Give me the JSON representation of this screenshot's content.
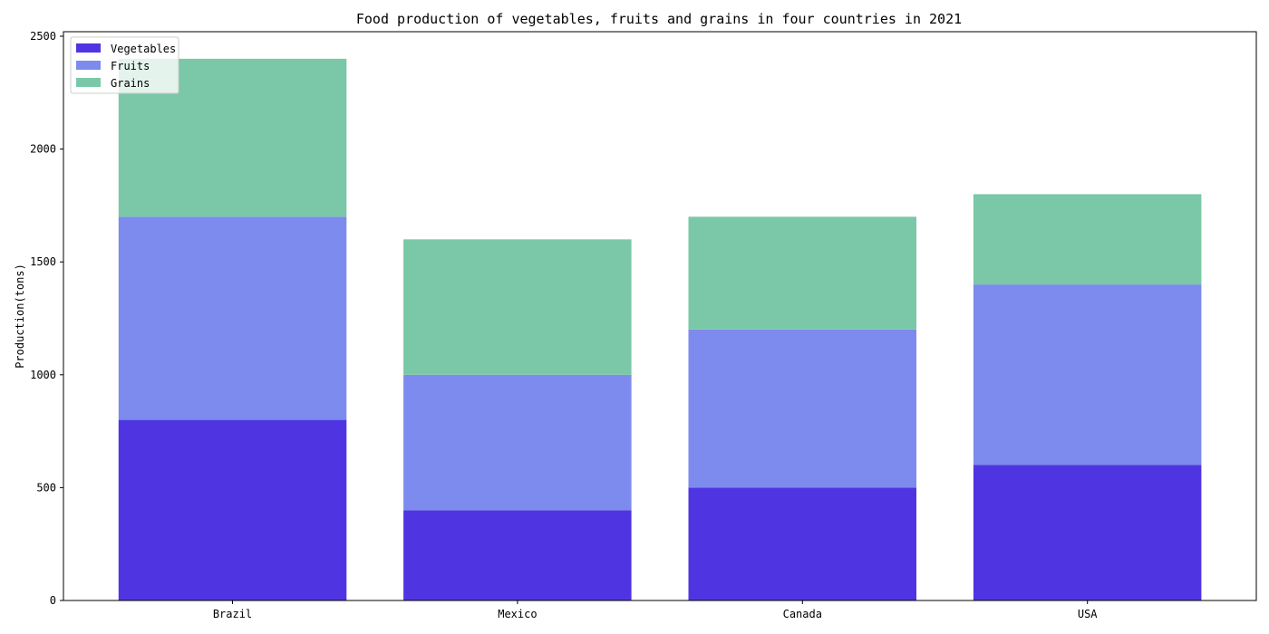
{
  "chart_data": {
    "type": "bar",
    "stacked": true,
    "title": "Food production of vegetables, fruits and grains in four countries in 2021",
    "xlabel": "",
    "ylabel": "Production(tons)",
    "categories": [
      "Brazil",
      "Mexico",
      "Canada",
      "USA"
    ],
    "ylim": [
      0,
      2520
    ],
    "yticks": [
      0,
      500,
      1000,
      1500,
      2000,
      2500
    ],
    "grid": false,
    "legend_position": "upper-left",
    "series": [
      {
        "name": "Vegetables",
        "values": [
          800,
          400,
          500,
          600
        ],
        "color": "#4f35e1"
      },
      {
        "name": "Fruits",
        "values": [
          900,
          600,
          700,
          800
        ],
        "color": "#7d8aee"
      },
      {
        "name": "Grains",
        "values": [
          700,
          600,
          500,
          400
        ],
        "color": "#7ac8a7"
      }
    ]
  }
}
